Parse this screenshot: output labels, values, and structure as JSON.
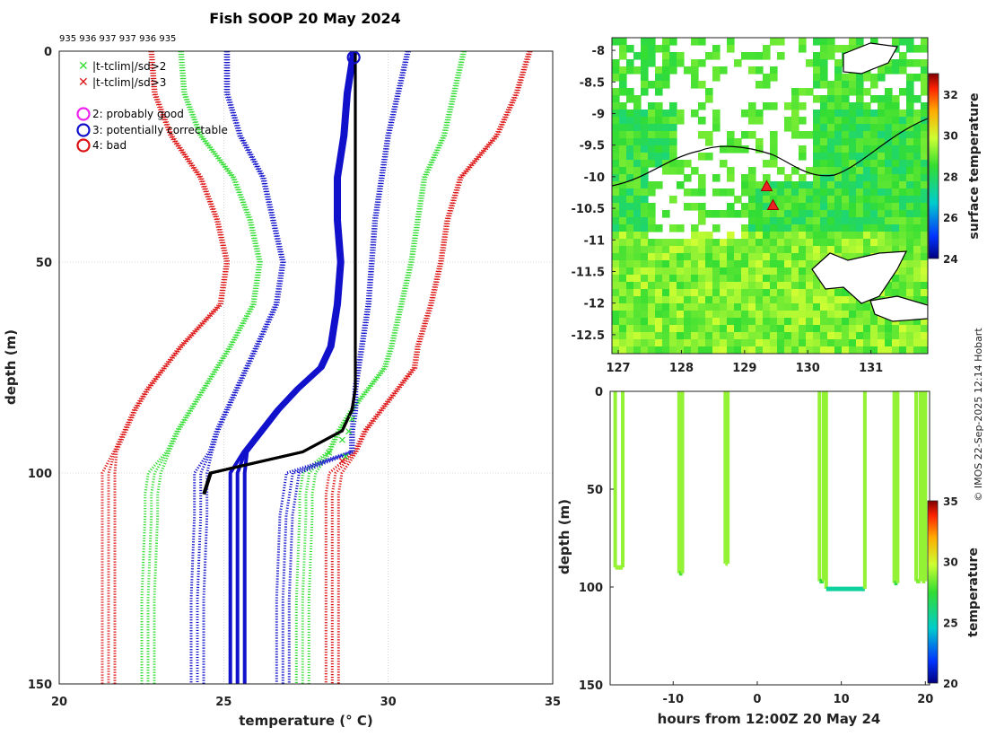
{
  "title": "Fish SOOP 20 May 2024",
  "copyright": "© IMOS 22-Sep-2025 12:14 Hobart",
  "profile_counts": "935 936 937 937 936 935",
  "legend": {
    "cross_green": "|t-tclim|/sd>2",
    "cross_red": "|t-tclim|/sd>3",
    "flag2": "2: probably good",
    "flag3": "3: potentially correctable",
    "flag4": "4: bad"
  },
  "colors": {
    "clim2": "#33dd33",
    "clim3": "#dd1111",
    "limits": "#1111cc",
    "profile": "#000000",
    "flag": "#1111cc"
  },
  "chart_data": [
    {
      "type": "line",
      "title": "Fish SOOP 20 May 2024",
      "xlabel": "temperature (° C)",
      "ylabel": "depth (m)",
      "xlim": [
        20,
        35
      ],
      "ylim": [
        150,
        0
      ],
      "xticks": [
        "20",
        "25",
        "30",
        "35"
      ],
      "yticks": [
        "0",
        "50",
        "100",
        "150"
      ],
      "grid": true,
      "depth": [
        0,
        10,
        20,
        30,
        40,
        50,
        60,
        70,
        75,
        80,
        85,
        90,
        95,
        100,
        105,
        110,
        130,
        150
      ],
      "series": [
        {
          "name": "clim -3sd",
          "style": "red-dotted",
          "values": [
            22.8,
            22.9,
            23.4,
            24.3,
            24.8,
            25.1,
            24.9,
            23.7,
            23.2,
            22.7,
            22.3,
            22.0,
            21.7,
            21.5,
            21.5,
            21.5,
            21.5,
            21.5
          ]
        },
        {
          "name": "clim -2sd",
          "style": "green-dotted",
          "values": [
            23.7,
            23.8,
            24.3,
            25.3,
            25.8,
            26.1,
            25.9,
            25.2,
            24.8,
            24.4,
            24.0,
            23.6,
            23.3,
            22.9,
            22.8,
            22.8,
            22.7,
            22.7
          ]
        },
        {
          "name": "clim +2sd",
          "style": "green-dotted",
          "values": [
            32.3,
            32.0,
            31.7,
            31.1,
            30.9,
            30.7,
            30.4,
            30.1,
            29.9,
            29.4,
            28.9,
            28.5,
            28.2,
            27.6,
            27.5,
            27.5,
            27.4,
            27.4
          ]
        },
        {
          "name": "clim +3sd",
          "style": "red-dotted",
          "values": [
            34.3,
            33.9,
            33.3,
            32.2,
            31.8,
            31.6,
            31.3,
            30.9,
            30.8,
            30.3,
            29.8,
            29.3,
            29.0,
            28.4,
            28.3,
            28.3,
            28.3,
            28.3
          ]
        },
        {
          "name": "profile limits lo",
          "style": "blue-dotted",
          "values": [
            25.1,
            25.1,
            25.5,
            26.2,
            26.5,
            26.8,
            26.6,
            26.0,
            25.7,
            25.4,
            25.1,
            24.8,
            24.6,
            24.3,
            24.3,
            24.3,
            24.2,
            24.2
          ]
        },
        {
          "name": "profile limits hi",
          "style": "blue-dotted",
          "values": [
            30.6,
            30.3,
            30.0,
            29.8,
            29.6,
            29.5,
            29.4,
            29.2,
            29.1,
            29.0,
            29.0,
            28.9,
            28.9,
            27.1,
            27.0,
            26.9,
            26.8,
            26.8
          ]
        },
        {
          "name": "flagged profile",
          "style": "blue-solid",
          "values": [
            28.9,
            28.7,
            28.6,
            28.4,
            28.4,
            28.5,
            28.4,
            28.2,
            27.9,
            27.2,
            26.6,
            26.1,
            25.6,
            25.2,
            25.2,
            25.2,
            25.2,
            25.2
          ]
        },
        {
          "name": "observed profile",
          "style": "black-solid",
          "values": [
            29.0,
            29.0,
            29.0,
            29.0,
            29.0,
            29.0,
            29.0,
            29.0,
            29.0,
            29.0,
            28.9,
            28.6,
            27.4,
            24.6,
            24.4,
            null,
            null,
            null
          ]
        }
      ]
    },
    {
      "type": "heatmap",
      "title": "",
      "colorbar_label": "surface temperature",
      "xlim": [
        126.9,
        131.9
      ],
      "ylim": [
        -12.8,
        -7.8
      ],
      "xticks": [
        "127",
        "128",
        "129",
        "130",
        "131"
      ],
      "yticks": [
        "-8",
        "-8.5",
        "-9",
        "-9.5",
        "-10",
        "-10.5",
        "-11",
        "-11.5",
        "-12",
        "-12.5"
      ],
      "colorbar_ticks": [
        "24",
        "26",
        "28",
        "30",
        "32"
      ],
      "colorbar_range": [
        24,
        33
      ],
      "markers": [
        {
          "lon": 129.35,
          "lat": -10.15
        },
        {
          "lon": 129.45,
          "lat": -10.45
        }
      ]
    },
    {
      "type": "scatter",
      "xlabel": "hours from 12:00Z 20 May 24",
      "ylabel": "depth (m)",
      "colorbar_label": "temperature",
      "xlim": [
        -17.5,
        20.5
      ],
      "ylim": [
        150,
        0
      ],
      "xticks": [
        "-10",
        "0",
        "10",
        "20"
      ],
      "yticks": [
        "0",
        "50",
        "100",
        "150"
      ],
      "colorbar_ticks": [
        "20",
        "25",
        "30",
        "35"
      ],
      "colorbar_range": [
        20,
        35
      ],
      "casts": [
        {
          "t0": -16.9,
          "t1": -16.0,
          "bottom": 90,
          "temp": 29
        },
        {
          "t0": -9.3,
          "t1": -8.9,
          "bottom": 93,
          "temp": 27.8
        },
        {
          "t0": -3.8,
          "t1": -3.5,
          "bottom": 88,
          "temp": 29
        },
        {
          "t0": 7.4,
          "t1": 7.9,
          "bottom": 97,
          "temp": 27.3
        },
        {
          "t0": 8.2,
          "t1": 12.8,
          "bottom": 101,
          "temp": 25.4
        },
        {
          "t0": 16.3,
          "t1": 16.7,
          "bottom": 98,
          "temp": 27
        },
        {
          "t0": 18.9,
          "t1": 19.4,
          "bottom": 97,
          "temp": 28.6
        },
        {
          "t0": 19.6,
          "t1": 20.0,
          "bottom": 97,
          "temp": 28.9
        }
      ]
    }
  ]
}
